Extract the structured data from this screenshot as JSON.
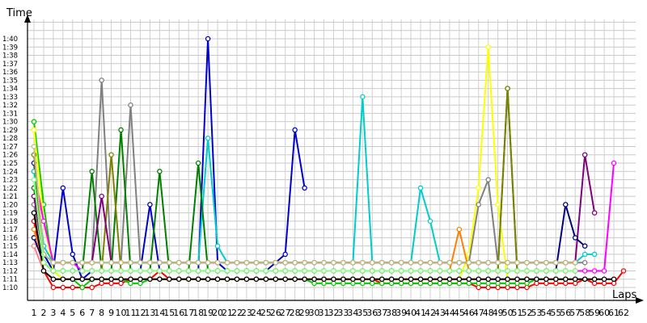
{
  "chart_data": {
    "type": "line",
    "title": "",
    "ylabel": "Time",
    "xlabel": "Laps",
    "x_ticks": [
      "1",
      "2",
      "3",
      "4",
      "5",
      "6",
      "7",
      "8",
      "9",
      "10",
      "11",
      "12",
      "13",
      "14",
      "15",
      "16",
      "17",
      "18",
      "19",
      "20",
      "21",
      "22",
      "23",
      "24",
      "25",
      "26",
      "27",
      "28",
      "29",
      "30",
      "31",
      "32",
      "33",
      "34",
      "35",
      "36",
      "37",
      "38",
      "39",
      "40",
      "41",
      "42",
      "43",
      "44",
      "45",
      "46",
      "47",
      "48",
      "49",
      "50",
      "51",
      "52",
      "53",
      "54",
      "55",
      "56",
      "57",
      "58",
      "59",
      "60",
      "61",
      "62"
    ],
    "x_tick_labels_as_printed": [
      "1",
      "2",
      "3",
      "4",
      "5",
      "6",
      "7",
      "8",
      "9",
      "10",
      "11",
      "12",
      "13",
      "14",
      "15",
      "16",
      "17",
      "18",
      "19",
      "20",
      "21",
      "22",
      "23",
      "24",
      "25",
      "26",
      "27",
      "28",
      "29",
      "30",
      "31",
      "32",
      "33",
      "34",
      "35",
      "36",
      "37",
      "38",
      "39",
      "40",
      "41",
      "42",
      "43",
      "44",
      "45",
      "46",
      "47",
      "48",
      "49",
      "50",
      "51",
      "52",
      "53",
      "54",
      "55",
      "56",
      "57",
      "58",
      "59",
      "60",
      "61",
      "62"
    ],
    "y_ticks": [
      "1:10",
      "1:11",
      "1:12",
      "1:13",
      "1:14",
      "1:15",
      "1:16",
      "1:17",
      "1:18",
      "1:19",
      "1:20",
      "1:21",
      "1:22",
      "1:23",
      "1:24",
      "1:25",
      "1:26",
      "1:27",
      "1:28",
      "1:29",
      "1:30",
      "1:31",
      "1:32",
      "1:33",
      "1:34",
      "1:35",
      "1:36",
      "1:37",
      "1:38",
      "1:39",
      "1:40"
    ],
    "ylim": [
      69,
      104
    ],
    "xlim": [
      0.2,
      62.2
    ],
    "y_unit": "seconds",
    "grid": true,
    "series": [
      {
        "color": "#ff0000",
        "values": [
          78,
          72,
          70,
          70,
          70,
          70,
          70,
          70.5,
          70.5,
          70.5,
          71,
          71,
          71,
          72,
          71,
          71,
          71,
          71,
          71,
          71,
          71,
          71,
          71,
          71,
          71,
          71,
          71,
          71,
          71,
          71,
          71,
          71,
          71,
          71,
          71,
          71,
          70.5,
          70.5,
          70.5,
          70.5,
          70.5,
          70.5,
          70.5,
          70.5,
          70.5,
          70.5,
          70,
          70,
          70,
          70,
          70,
          70,
          70.5,
          70.5,
          70.5,
          70.5,
          70.5,
          71,
          70.5,
          70.5,
          70.5,
          72
        ]
      },
      {
        "color": "#00cc00",
        "values": [
          90,
          80,
          72,
          71,
          71,
          70,
          71,
          71,
          71,
          71,
          70.5,
          70.5,
          71,
          71,
          71,
          71,
          71,
          71,
          71,
          71,
          71,
          71,
          71,
          71,
          71,
          71,
          71,
          71,
          71,
          70.5,
          70.5,
          70.5,
          70.5,
          70.5,
          70.5,
          70.5,
          70.5,
          70.5,
          70.5,
          70.5,
          70.5,
          70.5,
          70.5,
          70.5,
          70.5,
          70.5,
          70.5,
          70.5,
          70.5,
          70.5,
          70.5,
          70.5,
          71,
          71,
          71,
          71,
          71,
          71,
          71,
          null,
          null,
          null
        ]
      },
      {
        "color": "#0000cc",
        "values": [
          85,
          74,
          72,
          82,
          74,
          71,
          72,
          72,
          72,
          72,
          72,
          72,
          80,
          72,
          72,
          72,
          72,
          72,
          100,
          73,
          72,
          72,
          72,
          72,
          72,
          73,
          74,
          89,
          82,
          null,
          null,
          null,
          null,
          null,
          null,
          null,
          null,
          null,
          null,
          null,
          null,
          null,
          null,
          null,
          null,
          null,
          null,
          null,
          null,
          null,
          null,
          null,
          null,
          null,
          null,
          null,
          null,
          null,
          null,
          null,
          null,
          null
        ]
      },
      {
        "color": "#ffff00",
        "values": [
          89,
          78,
          72,
          71,
          71,
          71,
          71,
          71,
          71,
          71,
          71,
          71,
          71,
          71,
          71,
          71,
          71,
          71,
          71,
          71,
          71,
          71,
          71,
          71,
          71,
          71,
          71,
          71,
          71,
          71,
          71,
          71,
          71,
          71,
          71,
          71,
          71,
          71,
          71,
          71,
          71,
          71,
          71,
          71,
          71,
          74,
          82,
          99,
          80,
          71,
          71,
          71,
          71,
          71,
          71,
          71,
          71,
          null,
          null,
          null,
          null,
          null
        ]
      },
      {
        "color": "#ff00ff",
        "values": [
          84,
          78,
          73,
          73,
          73,
          72,
          72,
          72,
          72,
          72,
          72,
          72,
          72,
          72,
          72,
          72,
          72,
          72,
          72,
          72,
          72,
          72,
          72,
          72,
          72,
          72,
          72,
          72,
          72,
          72,
          72,
          72,
          72,
          72,
          72,
          72,
          72,
          72,
          72,
          72,
          72,
          72,
          72,
          72,
          72,
          72,
          72,
          72,
          72,
          72,
          72,
          72,
          72,
          72,
          72,
          72,
          72,
          72,
          72,
          72,
          85,
          null
        ]
      },
      {
        "color": "#00cccc",
        "values": [
          84,
          75,
          73,
          73,
          73,
          73,
          73,
          73,
          73,
          73,
          73,
          73,
          73,
          73,
          73,
          73,
          73,
          73,
          88,
          75,
          73,
          73,
          73,
          73,
          73,
          73,
          73,
          73,
          73,
          73,
          73,
          73,
          73,
          73,
          93,
          73,
          73,
          73,
          73,
          73,
          82,
          78,
          73,
          73,
          73,
          73,
          73,
          73,
          73,
          73,
          73,
          73,
          73,
          73,
          73,
          73,
          73,
          74,
          74,
          null,
          null,
          null
        ]
      },
      {
        "color": "#808080",
        "values": [
          80,
          74,
          73,
          73,
          73,
          73,
          73,
          95,
          73,
          73,
          92,
          73,
          73,
          73,
          73,
          73,
          73,
          73,
          73,
          73,
          73,
          73,
          73,
          73,
          73,
          73,
          73,
          73,
          73,
          73,
          73,
          73,
          73,
          73,
          73,
          73,
          73,
          73,
          73,
          73,
          73,
          73,
          73,
          73,
          73,
          73,
          80,
          83,
          73,
          73,
          73,
          73,
          73,
          73,
          73,
          73,
          73,
          73,
          null,
          null,
          null,
          null
        ]
      },
      {
        "color": "#008000",
        "values": [
          82,
          73,
          72,
          72,
          72,
          72,
          84,
          72,
          72,
          89,
          72,
          72,
          72,
          84,
          72,
          72,
          72,
          85,
          72,
          72,
          72,
          72,
          72,
          72,
          72,
          72,
          72,
          72,
          72,
          72,
          72,
          72,
          72,
          72,
          72,
          72,
          72,
          72,
          72,
          72,
          72,
          72,
          72,
          72,
          72,
          72,
          72,
          72,
          72,
          94,
          72,
          72,
          72,
          72,
          72,
          72,
          72,
          null,
          null,
          null,
          null,
          null
        ]
      },
      {
        "color": "#808000",
        "values": [
          86,
          73,
          72,
          72,
          72,
          72,
          72,
          72,
          86,
          72,
          72,
          72,
          72,
          72,
          72,
          72,
          72,
          72,
          72,
          72,
          72,
          72,
          72,
          72,
          72,
          72,
          72,
          72,
          72,
          72,
          72,
          72,
          72,
          72,
          72,
          72,
          72,
          72,
          72,
          72,
          72,
          72,
          72,
          72,
          72,
          72,
          72,
          72,
          72,
          94,
          72,
          72,
          72,
          72,
          72,
          72,
          72,
          null,
          null,
          null,
          null,
          null
        ]
      },
      {
        "color": "#800080",
        "values": [
          81,
          74,
          73,
          73,
          73,
          73,
          73,
          81,
          73,
          73,
          73,
          73,
          73,
          73,
          73,
          73,
          73,
          73,
          73,
          73,
          73,
          73,
          73,
          73,
          73,
          73,
          73,
          73,
          73,
          73,
          73,
          73,
          73,
          73,
          73,
          73,
          73,
          73,
          73,
          73,
          73,
          73,
          73,
          73,
          73,
          73,
          73,
          73,
          73,
          73,
          73,
          73,
          73,
          73,
          73,
          73,
          73,
          86,
          79,
          null,
          null,
          null
        ]
      },
      {
        "color": "#ff8080",
        "values": [
          75,
          72,
          71,
          71,
          71,
          71,
          71,
          71,
          71,
          71,
          71,
          71,
          71,
          71,
          71,
          71,
          71,
          71,
          71,
          71,
          71,
          71,
          71,
          71,
          71,
          71,
          71,
          71,
          71,
          71,
          71,
          71,
          71,
          71,
          71,
          71,
          71,
          71,
          71,
          71,
          71,
          71,
          71,
          71,
          71,
          71,
          71,
          71,
          71,
          71,
          71,
          71,
          71,
          71,
          71,
          71,
          71,
          71,
          71,
          null,
          null,
          null
        ]
      },
      {
        "color": "#000080",
        "values": [
          76,
          73,
          72,
          72,
          72,
          72,
          72,
          72,
          72,
          72,
          72,
          72,
          72,
          72,
          72,
          72,
          72,
          72,
          72,
          72,
          72,
          72,
          72,
          72,
          72,
          72,
          72,
          72,
          72,
          72,
          72,
          72,
          72,
          72,
          72,
          72,
          72,
          72,
          72,
          72,
          72,
          72,
          72,
          72,
          72,
          72,
          72,
          72,
          72,
          72,
          72,
          72,
          72,
          72,
          72,
          80,
          76,
          75,
          null,
          null,
          null,
          null
        ]
      },
      {
        "color": "#ff8000",
        "values": [
          77,
          73,
          72,
          72,
          72,
          72,
          72,
          72,
          72,
          72,
          72,
          72,
          72,
          72,
          72,
          72,
          72,
          72,
          72,
          72,
          72,
          72,
          72,
          72,
          72,
          72,
          72,
          72,
          72,
          72,
          72,
          72,
          72,
          72,
          72,
          72,
          72,
          72,
          72,
          72,
          72,
          72,
          72,
          72,
          77,
          72,
          72,
          72,
          72,
          72,
          72,
          72,
          72,
          72,
          72,
          72,
          72,
          null,
          null,
          null,
          null,
          null
        ]
      },
      {
        "color": "#000000",
        "values": [
          79,
          72,
          71,
          71,
          71,
          71,
          71,
          71,
          71,
          71,
          71,
          71,
          71,
          71,
          71,
          71,
          71,
          71,
          71,
          71,
          71,
          71,
          71,
          71,
          71,
          71,
          71,
          71,
          71,
          71,
          71,
          71,
          71,
          71,
          71,
          71,
          71,
          71,
          71,
          71,
          71,
          71,
          71,
          71,
          71,
          71,
          71,
          71,
          71,
          71,
          71,
          71,
          71,
          71,
          71,
          71,
          71,
          71,
          71,
          71,
          71,
          null
        ]
      },
      {
        "color": "#c0c080",
        "values": [
          87,
          74,
          73,
          73,
          73,
          73,
          73,
          73,
          73,
          73,
          73,
          73,
          73,
          73,
          73,
          73,
          73,
          73,
          73,
          73,
          73,
          73,
          73,
          73,
          73,
          73,
          73,
          73,
          73,
          73,
          73,
          73,
          73,
          73,
          73,
          73,
          73,
          73,
          73,
          73,
          73,
          73,
          73,
          73,
          73,
          73,
          73,
          73,
          73,
          73,
          73,
          73,
          73,
          73,
          73,
          73,
          73,
          null,
          null,
          null,
          null,
          null
        ]
      },
      {
        "color": "#80ff80",
        "values": [
          83,
          73,
          72,
          72,
          72,
          72,
          72,
          72,
          72,
          72,
          72,
          72,
          72,
          72,
          72,
          72,
          72,
          72,
          72,
          72,
          72,
          72,
          72,
          72,
          72,
          72,
          72,
          72,
          72,
          72,
          72,
          72,
          72,
          72,
          72,
          72,
          72,
          72,
          72,
          72,
          72,
          72,
          72,
          72,
          72,
          72,
          72,
          72,
          72,
          72,
          72,
          72,
          72,
          72,
          72,
          72,
          72,
          null,
          null,
          null,
          null,
          null
        ]
      }
    ]
  }
}
